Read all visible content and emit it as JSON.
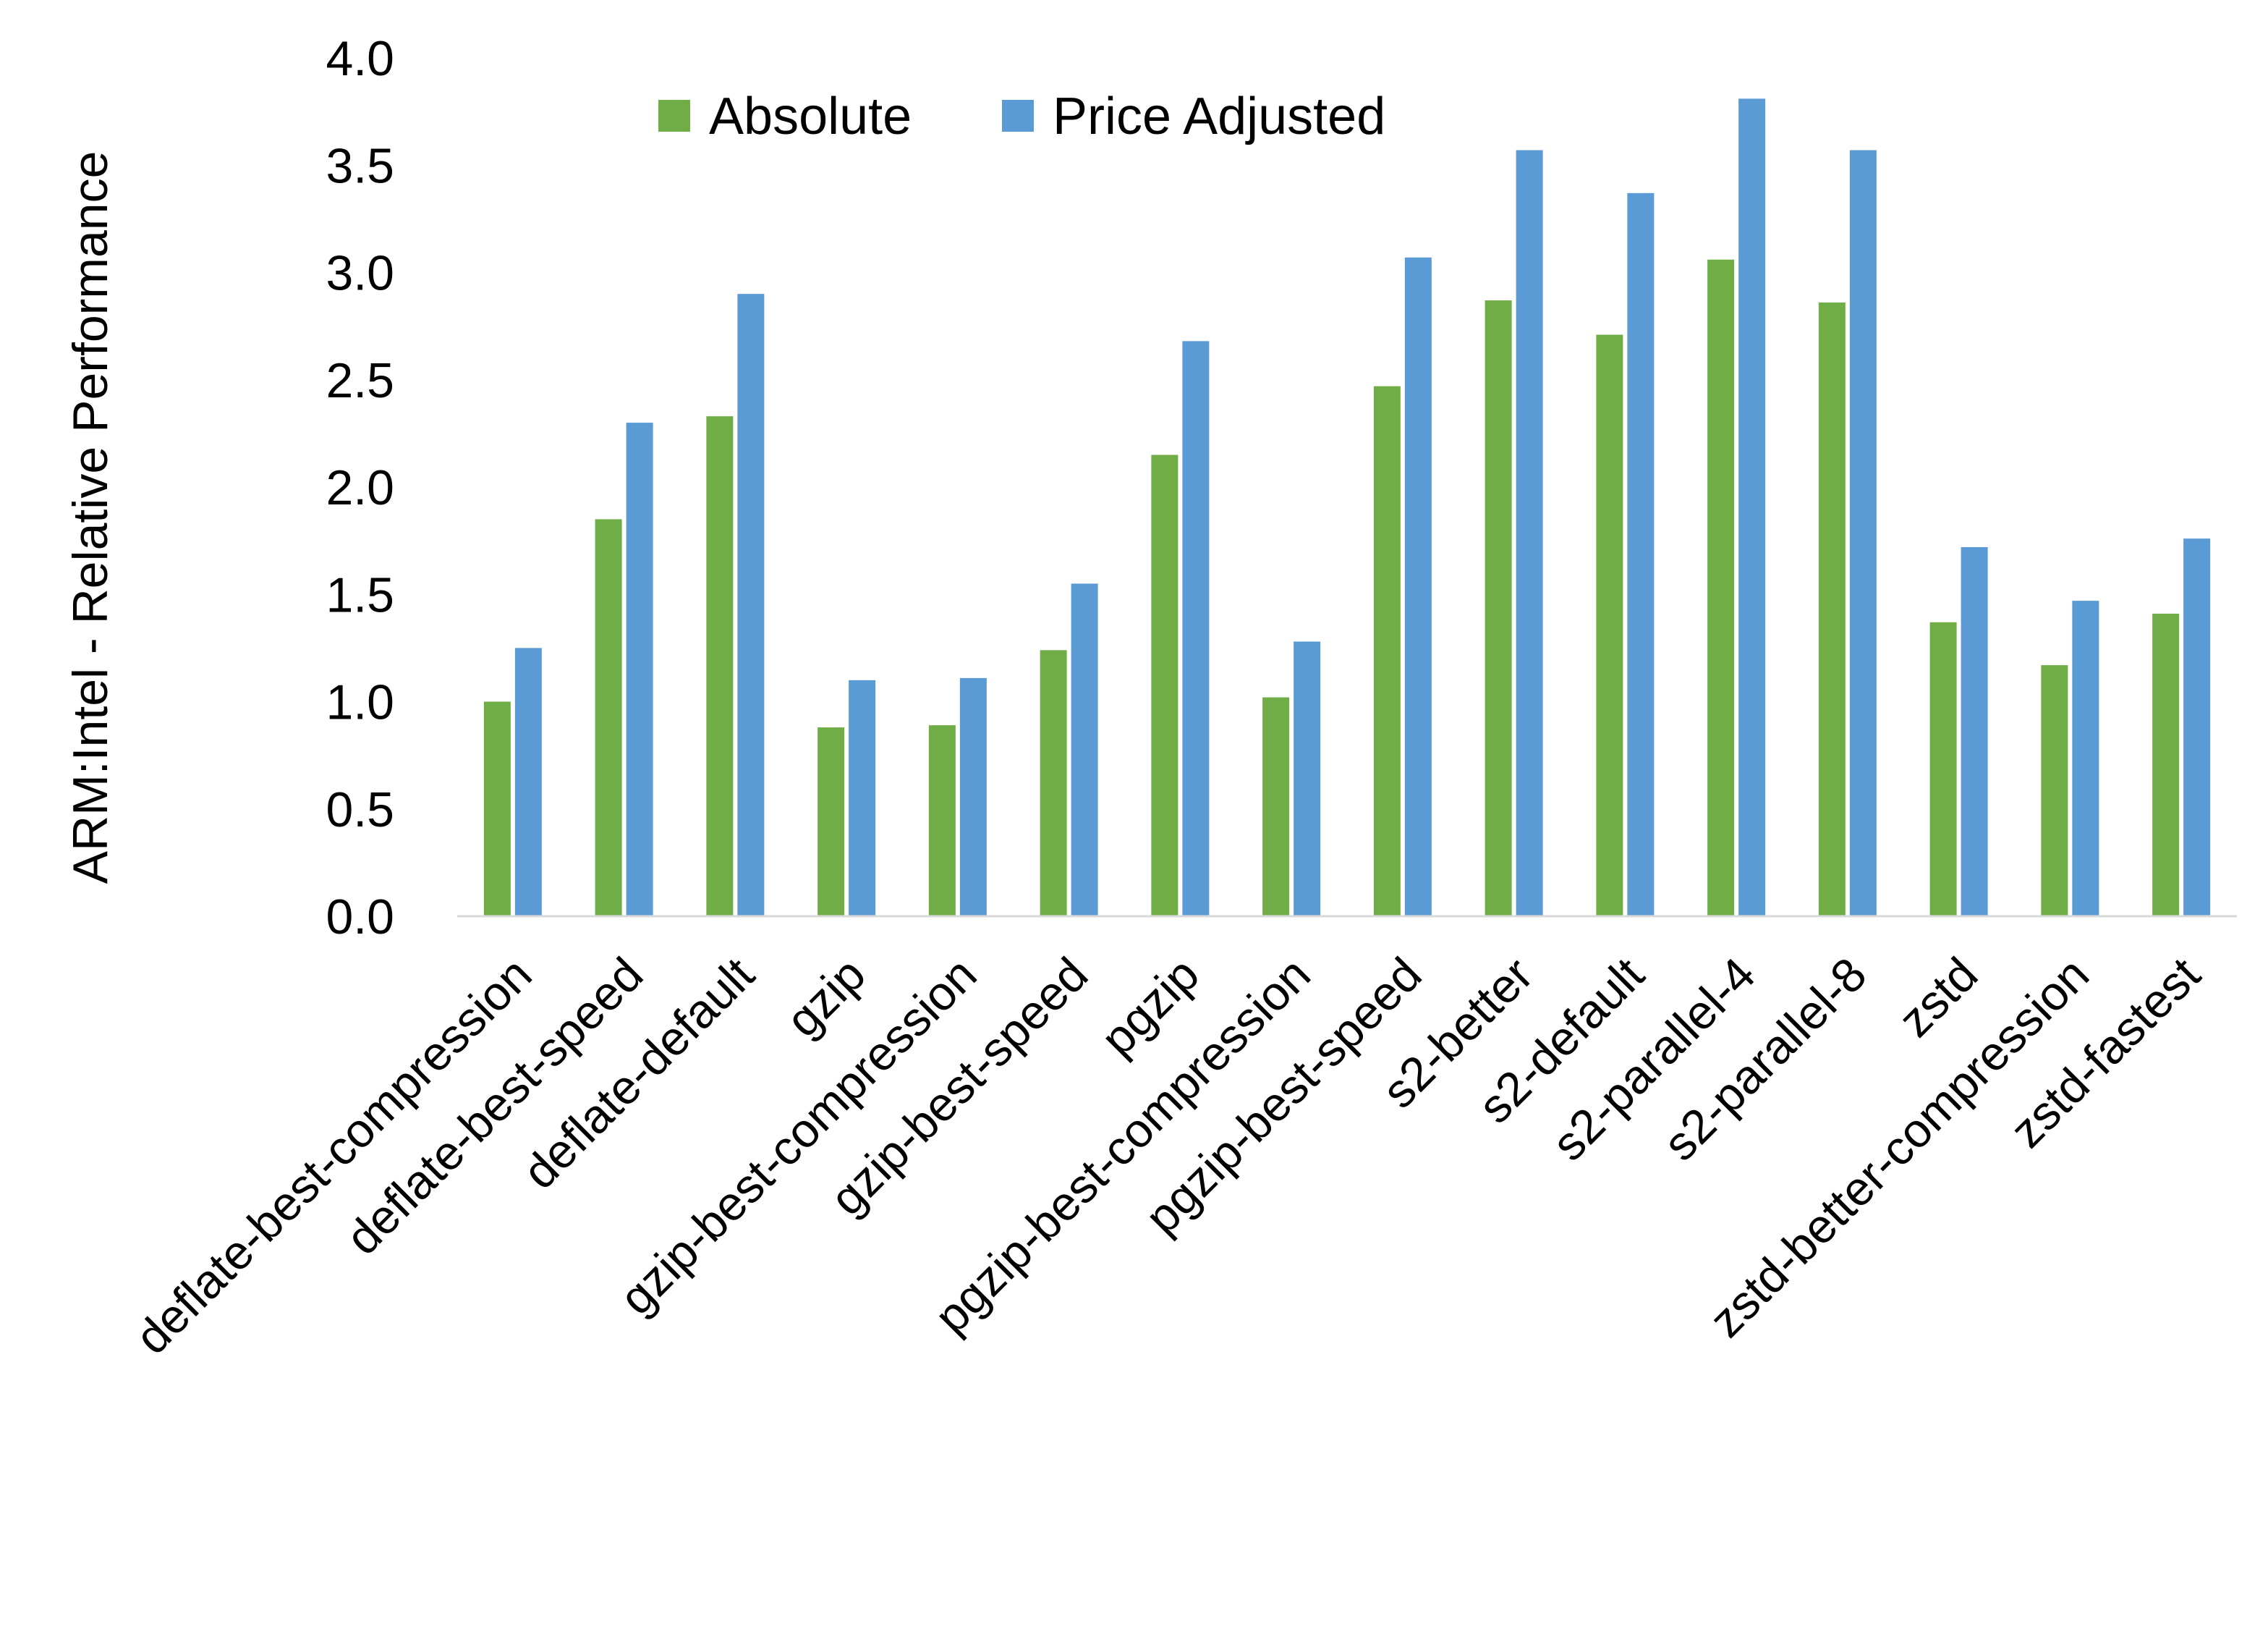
{
  "chart_data": {
    "type": "bar",
    "title": "",
    "xlabel": "",
    "ylabel": "ARM:Intel - Relative Performance",
    "ylim": [
      0,
      4.0
    ],
    "yticks": [
      "0.0",
      "0.5",
      "1.0",
      "1.5",
      "2.0",
      "2.5",
      "3.0",
      "3.5",
      "4.0"
    ],
    "grid": false,
    "legend_position": "top",
    "categories": [
      "deflate-best-compression",
      "deflate-best-speed",
      "deflate-default",
      "gzip",
      "gzip-best-compression",
      "gzip-best-speed",
      "pgzip",
      "pgzip-best-compression",
      "pgzip-best-speed",
      "s2-better",
      "s2-default",
      "s2-parallel-4",
      "s2-parallel-8",
      "zstd",
      "zstd-better-compression",
      "zstd-fastest"
    ],
    "series": [
      {
        "name": "Absolute",
        "color": "#70AD47",
        "values": [
          1.0,
          1.85,
          2.33,
          0.88,
          0.89,
          1.24,
          2.15,
          1.02,
          2.47,
          2.87,
          2.71,
          3.06,
          2.86,
          1.37,
          1.17,
          1.41
        ]
      },
      {
        "name": "Price Adjusted",
        "color": "#5B9BD5",
        "values": [
          1.25,
          2.3,
          2.9,
          1.1,
          1.11,
          1.55,
          2.68,
          1.28,
          3.07,
          3.57,
          3.37,
          3.81,
          3.57,
          1.72,
          1.47,
          1.76
        ]
      }
    ]
  }
}
